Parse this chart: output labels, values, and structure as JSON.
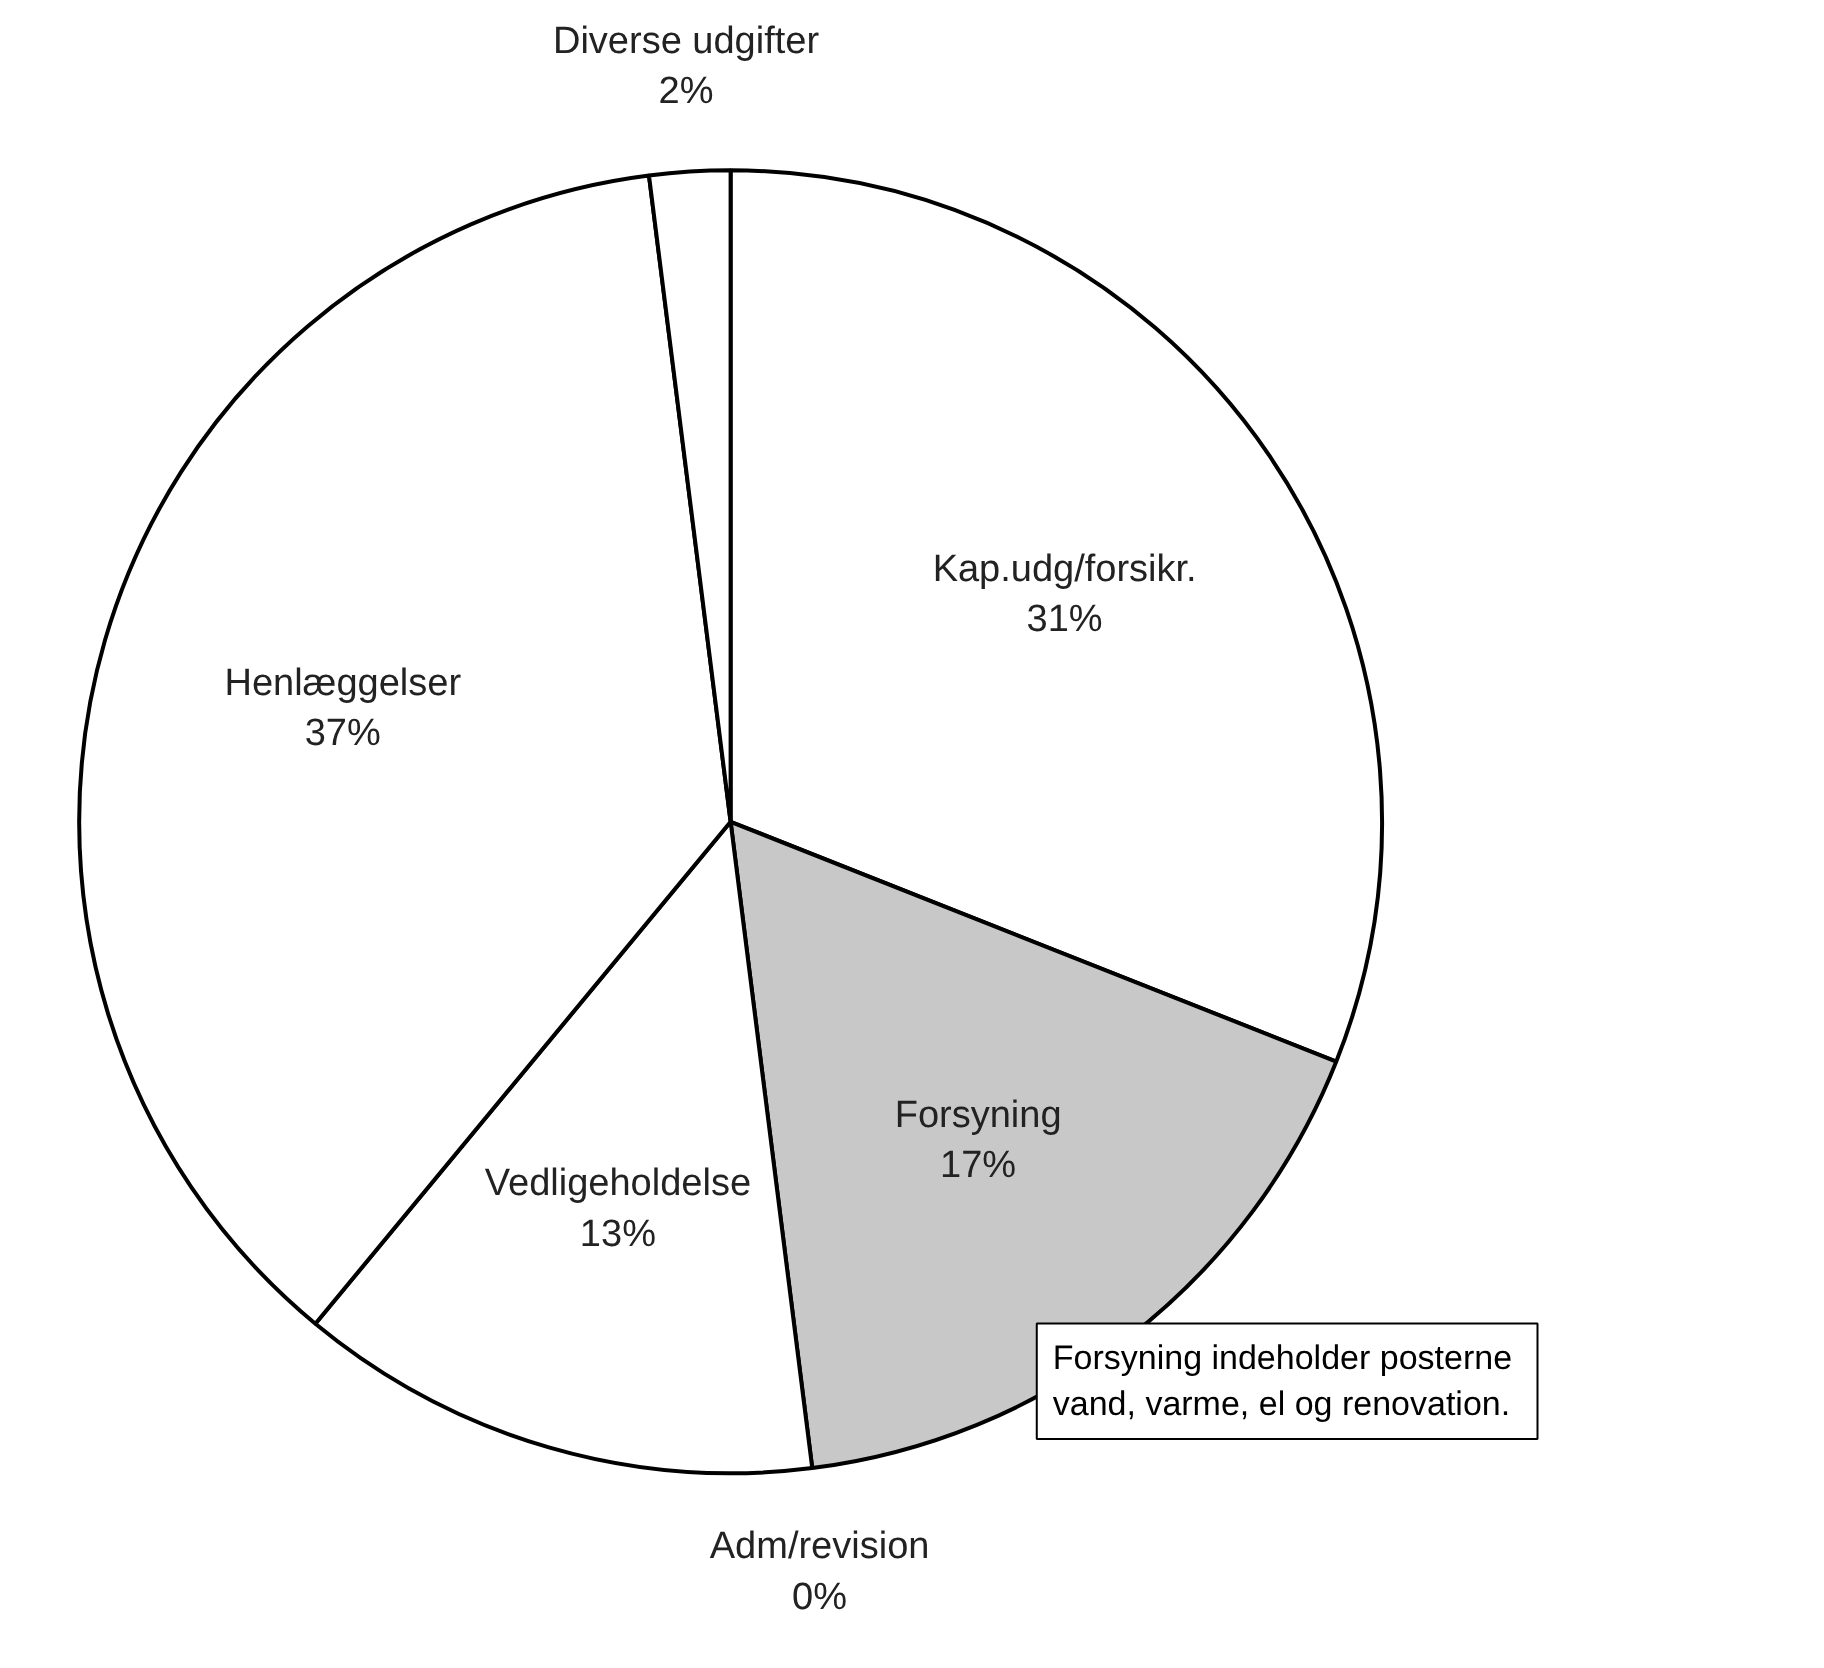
{
  "chart_data": {
    "type": "pie",
    "categories": [
      "Kap.udg/forsikr.",
      "Forsyning",
      "Adm/revision",
      "Vedligeholdelse",
      "Henlæggelser",
      "Diverse udgifter"
    ],
    "values": [
      31,
      17,
      0,
      13,
      37,
      2
    ],
    "value_labels": [
      "31%",
      "17%",
      "0%",
      "13%",
      "37%",
      "2%"
    ],
    "colors": [
      "#ffffff",
      "#c8c8c8",
      "#ffffff",
      "#ffffff",
      "#ffffff",
      "#ffffff"
    ],
    "annotations": [
      "Forsyning  indeholder posterne\nvand, varme, el og  renovation."
    ]
  }
}
